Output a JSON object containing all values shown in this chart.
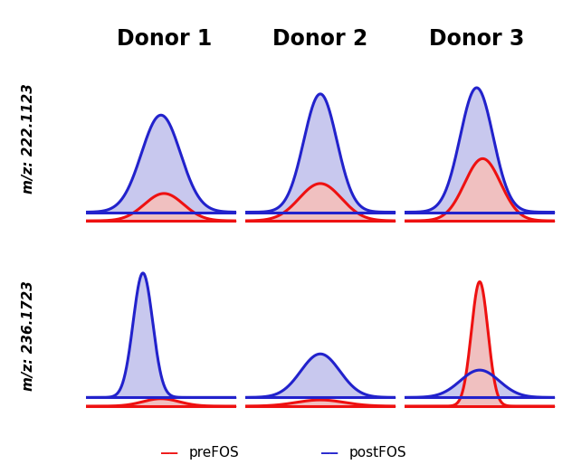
{
  "col_titles": [
    "Donor 1",
    "Donor 2",
    "Donor 3"
  ],
  "row_labels": [
    "m/z: 222.1123",
    "m/z: 236.1723"
  ],
  "blue_color": "#2222cc",
  "red_color": "#ee1111",
  "blue_fill": "#c8c8ee",
  "red_fill": "#f0c0c0",
  "legend_labels": [
    "preFOS",
    "postFOS"
  ],
  "background": "#ffffff",
  "title_fontsize": 17,
  "label_fontsize": 12,
  "curves": {
    "row0": {
      "col0": {
        "blue": {
          "mu": 0.5,
          "sigma": 0.13,
          "amp": 0.78
        },
        "red": {
          "mu": 0.52,
          "sigma": 0.13,
          "amp": 0.22
        }
      },
      "col1": {
        "blue": {
          "mu": 0.5,
          "sigma": 0.11,
          "amp": 0.95
        },
        "red": {
          "mu": 0.5,
          "sigma": 0.14,
          "amp": 0.3
        }
      },
      "col2": {
        "blue": {
          "mu": 0.48,
          "sigma": 0.11,
          "amp": 1.0
        },
        "red": {
          "mu": 0.52,
          "sigma": 0.12,
          "amp": 0.5
        }
      }
    },
    "row1": {
      "col0": {
        "blue": {
          "mu": 0.38,
          "sigma": 0.065,
          "amp": 1.0
        },
        "red": {
          "mu": 0.5,
          "sigma": 0.12,
          "amp": 0.06
        }
      },
      "col1": {
        "blue": {
          "mu": 0.5,
          "sigma": 0.13,
          "amp": 0.35
        },
        "red": {
          "mu": 0.5,
          "sigma": 0.16,
          "amp": 0.05
        }
      },
      "col2": {
        "blue": {
          "mu": 0.5,
          "sigma": 0.13,
          "amp": 0.22
        },
        "red": {
          "mu": 0.5,
          "sigma": 0.055,
          "amp": 1.0
        }
      }
    }
  },
  "ylim": [
    -0.18,
    1.15
  ],
  "blue_baseline": -0.06,
  "red_baseline": -0.13
}
